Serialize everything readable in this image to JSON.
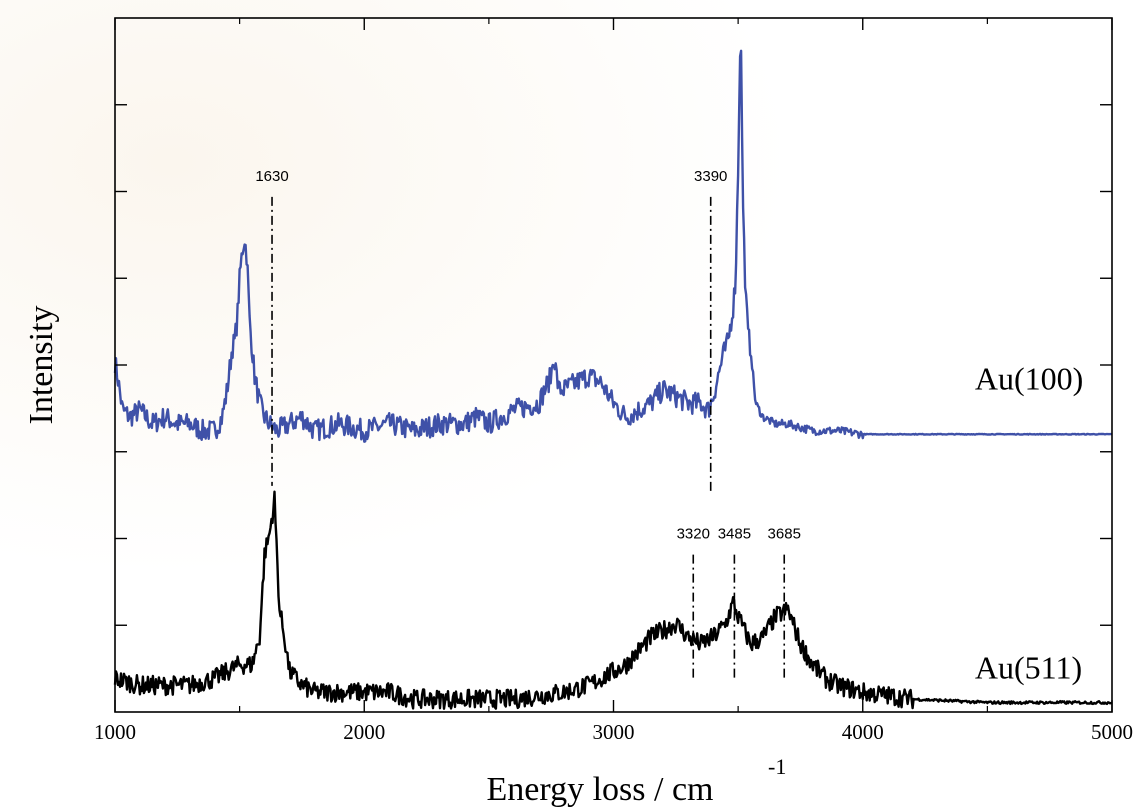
{
  "chart_data": {
    "type": "line",
    "xlabel": "Energy loss / cm",
    "xlabel_superscript": "-1",
    "ylabel": "Intensity",
    "xlim": [
      1000,
      5000
    ],
    "x_ticks": [
      1000,
      2000,
      3000,
      4000,
      5000
    ],
    "x_tick_labels": [
      "1000",
      "2000",
      "3000",
      "4000",
      "5000"
    ],
    "y_ticks": 8,
    "y_tick_labels_shown": false,
    "grid": false,
    "ylim": [
      0,
      100
    ],
    "series": [
      {
        "name": "Au(100)",
        "color": "#3f51a8",
        "points": [
          [
            1000,
            50
          ],
          [
            1010,
            48
          ],
          [
            1030,
            43
          ],
          [
            1060,
            42
          ],
          [
            1100,
            43
          ],
          [
            1150,
            41
          ],
          [
            1200,
            42
          ],
          [
            1250,
            41
          ],
          [
            1300,
            41
          ],
          [
            1350,
            40
          ],
          [
            1400,
            40
          ],
          [
            1430,
            42
          ],
          [
            1450,
            46
          ],
          [
            1470,
            52
          ],
          [
            1480,
            53
          ],
          [
            1490,
            56
          ],
          [
            1500,
            62
          ],
          [
            1510,
            66
          ],
          [
            1520,
            68
          ],
          [
            1530,
            65
          ],
          [
            1540,
            56
          ],
          [
            1560,
            48
          ],
          [
            1580,
            44
          ],
          [
            1600,
            42
          ],
          [
            1620,
            41
          ],
          [
            1650,
            40
          ],
          [
            1700,
            41
          ],
          [
            1750,
            42
          ],
          [
            1800,
            40
          ],
          [
            1900,
            41
          ],
          [
            2000,
            40
          ],
          [
            2100,
            41
          ],
          [
            2200,
            40
          ],
          [
            2300,
            41
          ],
          [
            2400,
            41
          ],
          [
            2450,
            42
          ],
          [
            2500,
            41
          ],
          [
            2600,
            43
          ],
          [
            2700,
            44
          ],
          [
            2750,
            48
          ],
          [
            2760,
            51
          ],
          [
            2780,
            46
          ],
          [
            2800,
            46
          ],
          [
            2850,
            47
          ],
          [
            2900,
            48
          ],
          [
            2950,
            47
          ],
          [
            3000,
            44
          ],
          [
            3050,
            42
          ],
          [
            3100,
            43
          ],
          [
            3150,
            44
          ],
          [
            3200,
            46
          ],
          [
            3250,
            45
          ],
          [
            3300,
            44
          ],
          [
            3350,
            44
          ],
          [
            3380,
            43
          ],
          [
            3400,
            45
          ],
          [
            3420,
            48
          ],
          [
            3440,
            51
          ],
          [
            3460,
            53
          ],
          [
            3480,
            58
          ],
          [
            3490,
            62
          ],
          [
            3500,
            78
          ],
          [
            3510,
            100
          ],
          [
            3520,
            72
          ],
          [
            3530,
            60
          ],
          [
            3540,
            54
          ],
          [
            3550,
            52
          ],
          [
            3570,
            44
          ],
          [
            3600,
            42
          ],
          [
            3650,
            41
          ],
          [
            3700,
            41
          ],
          [
            3800,
            40
          ],
          [
            3900,
            40
          ],
          [
            4000,
            39.5
          ],
          [
            4200,
            39.5
          ],
          [
            4500,
            39.5
          ],
          [
            5000,
            39.5
          ]
        ]
      },
      {
        "name": "Au(511)",
        "color": "#000000",
        "points": [
          [
            1000,
            4
          ],
          [
            1100,
            3
          ],
          [
            1200,
            3
          ],
          [
            1300,
            3
          ],
          [
            1400,
            4
          ],
          [
            1450,
            5
          ],
          [
            1500,
            6
          ],
          [
            1550,
            6
          ],
          [
            1580,
            10
          ],
          [
            1600,
            22
          ],
          [
            1620,
            25
          ],
          [
            1640,
            30
          ],
          [
            1660,
            14
          ],
          [
            1680,
            10
          ],
          [
            1700,
            5
          ],
          [
            1750,
            3
          ],
          [
            1800,
            2
          ],
          [
            1900,
            2
          ],
          [
            2000,
            2
          ],
          [
            2100,
            2
          ],
          [
            2200,
            1
          ],
          [
            2400,
            1
          ],
          [
            2600,
            1
          ],
          [
            2800,
            2
          ],
          [
            2900,
            3
          ],
          [
            3000,
            5
          ],
          [
            3050,
            6
          ],
          [
            3100,
            8
          ],
          [
            3150,
            10
          ],
          [
            3200,
            11
          ],
          [
            3250,
            12
          ],
          [
            3300,
            10
          ],
          [
            3350,
            9
          ],
          [
            3400,
            10
          ],
          [
            3450,
            12
          ],
          [
            3480,
            15
          ],
          [
            3500,
            13
          ],
          [
            3550,
            9
          ],
          [
            3600,
            10
          ],
          [
            3650,
            13
          ],
          [
            3700,
            14
          ],
          [
            3720,
            12
          ],
          [
            3750,
            9
          ],
          [
            3800,
            6
          ],
          [
            3850,
            4
          ],
          [
            3900,
            3
          ],
          [
            4000,
            2
          ],
          [
            4200,
            1
          ],
          [
            4500,
            0.5
          ],
          [
            5000,
            0.5
          ]
        ]
      }
    ],
    "series_labels": [
      {
        "text": "Au(100)",
        "x": 4450,
        "y": 46
      },
      {
        "text": "Au(511)",
        "x": 4450,
        "y": 4
      }
    ],
    "annotations": [
      {
        "label": "1630",
        "x": 1630,
        "y_top": 74,
        "y_bottom": 32
      },
      {
        "label": "3390",
        "x": 3390,
        "y_top": 74,
        "y_bottom": 31
      },
      {
        "label": "3320",
        "x": 3320,
        "y_top": 22,
        "y_bottom": 4
      },
      {
        "label": "3485",
        "x": 3485,
        "y_top": 22,
        "y_bottom": 4
      },
      {
        "label": "3685",
        "x": 3685,
        "y_top": 22,
        "y_bottom": 4
      }
    ]
  }
}
